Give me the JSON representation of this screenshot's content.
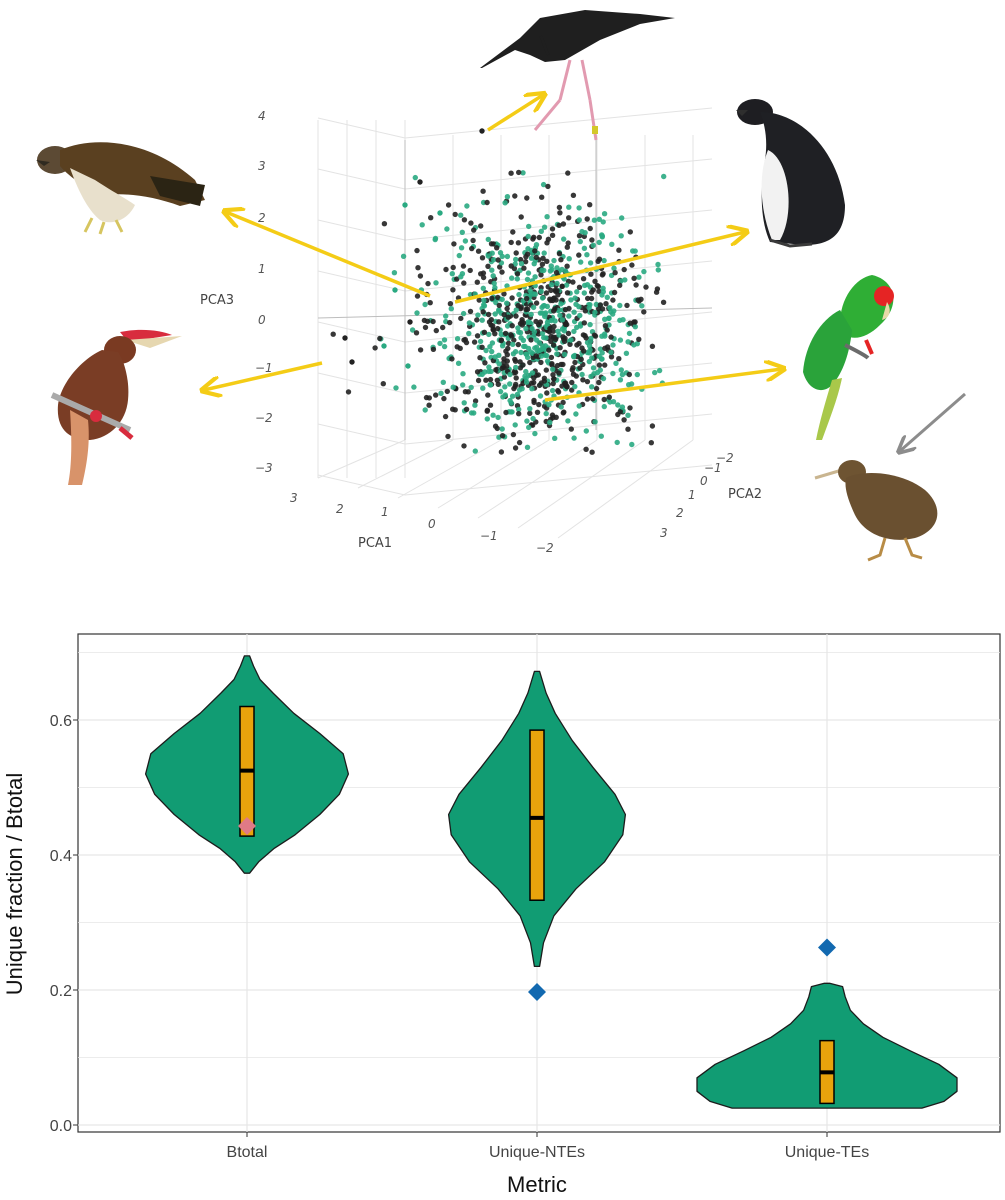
{
  "colors": {
    "violin_fill": "#119c73",
    "box_fill": "#e8a30c",
    "median": "#000000",
    "point_tip": "#e07a86",
    "point_diamond": "#1269b0",
    "arrow_yellow": "#f4cc16",
    "arrow_grey": "#8c8c8c",
    "scatter_green": "#2aaa82",
    "scatter_black": "#222222",
    "grid": "#e6e6e6"
  },
  "bird_icons": [
    "stilt-bird-icon",
    "hawk-eagle-icon",
    "penguin-icon",
    "hornbill-icon",
    "parrot-icon",
    "kiwi-icon"
  ],
  "chart_data": [
    {
      "type": "scatter",
      "projection": "3d",
      "x_axis": {
        "label": "PCA1",
        "ticks": [
          "3",
          "2",
          "1",
          "0",
          "−1",
          "−2"
        ]
      },
      "y_axis": {
        "label": "PCA2",
        "ticks": [
          "−2",
          "−1",
          "0",
          "1",
          "2",
          "3"
        ]
      },
      "z_axis": {
        "label": "PCA3",
        "ticks": [
          "4",
          "3",
          "2",
          "1",
          "0",
          "−1",
          "−2",
          "−3"
        ]
      },
      "grid": true,
      "series_colors": [
        "#2aaa82",
        "#222222"
      ]
    },
    {
      "type": "violin",
      "xlabel": "Metric",
      "ylabel": "Unique fraction / Btotal",
      "ylim": [
        0.0,
        0.7
      ],
      "yticks": [
        "0.0",
        "0.2",
        "0.4",
        "0.6"
      ],
      "categories": [
        "Btotal",
        "Unique-NTEs",
        "Unique-TEs"
      ],
      "grid": true,
      "violins": [
        {
          "category": "Btotal",
          "min": 0.373,
          "max": 0.695,
          "q1": 0.428,
          "median": 0.525,
          "q3": 0.62,
          "profile": [
            [
              0.373,
              0.02
            ],
            [
              0.39,
              0.09
            ],
            [
              0.41,
              0.21
            ],
            [
              0.43,
              0.37
            ],
            [
              0.46,
              0.56
            ],
            [
              0.49,
              0.71
            ],
            [
              0.52,
              0.78
            ],
            [
              0.55,
              0.74
            ],
            [
              0.58,
              0.56
            ],
            [
              0.61,
              0.36
            ],
            [
              0.64,
              0.2
            ],
            [
              0.66,
              0.1
            ],
            [
              0.68,
              0.05
            ],
            [
              0.695,
              0.02
            ]
          ],
          "points": [
            {
              "value": 0.443,
              "shape": "diamond",
              "color": "#e07a86"
            }
          ]
        },
        {
          "category": "Unique-NTEs",
          "min": 0.235,
          "max": 0.672,
          "q1": 0.333,
          "median": 0.455,
          "q3": 0.585,
          "profile": [
            [
              0.235,
              0.02
            ],
            [
              0.27,
              0.05
            ],
            [
              0.31,
              0.13
            ],
            [
              0.35,
              0.3
            ],
            [
              0.39,
              0.52
            ],
            [
              0.43,
              0.66
            ],
            [
              0.46,
              0.68
            ],
            [
              0.49,
              0.6
            ],
            [
              0.53,
              0.43
            ],
            [
              0.57,
              0.27
            ],
            [
              0.61,
              0.14
            ],
            [
              0.64,
              0.07
            ],
            [
              0.672,
              0.02
            ]
          ],
          "points": [
            {
              "value": 0.197,
              "shape": "diamond",
              "color": "#1269b0"
            }
          ]
        },
        {
          "category": "Unique-TEs",
          "min": 0.025,
          "max": 0.21,
          "q1": 0.032,
          "median": 0.078,
          "q3": 0.125,
          "profile": [
            [
              0.025,
              0.73
            ],
            [
              0.035,
              0.9
            ],
            [
              0.05,
              1.0
            ],
            [
              0.07,
              1.0
            ],
            [
              0.09,
              0.86
            ],
            [
              0.11,
              0.64
            ],
            [
              0.13,
              0.43
            ],
            [
              0.15,
              0.28
            ],
            [
              0.17,
              0.18
            ],
            [
              0.19,
              0.14
            ],
            [
              0.205,
              0.12
            ],
            [
              0.21,
              0.02
            ]
          ],
          "points": [
            {
              "value": 0.263,
              "shape": "diamond",
              "color": "#1269b0"
            }
          ]
        }
      ]
    }
  ]
}
